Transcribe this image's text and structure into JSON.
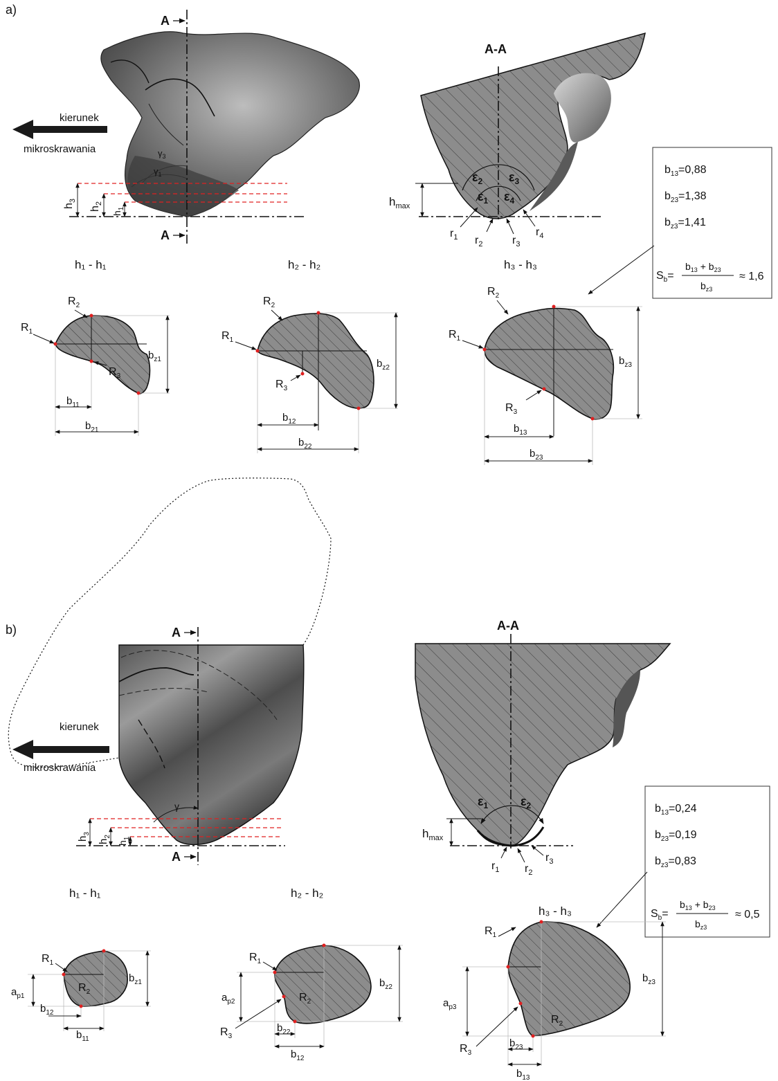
{
  "panel_a": {
    "label": "a)",
    "direction_line1": "kierunek",
    "direction_line2": "mikroskrawania",
    "section_label": "A-A",
    "marker_a_top": "A",
    "marker_a_bottom": "A",
    "h_labels": [
      "h",
      "h",
      "h"
    ],
    "h_subs": [
      "1",
      "2",
      "3"
    ],
    "gamma_labels": [
      "γ",
      "γ"
    ],
    "gamma_subs": [
      "3",
      "1"
    ],
    "hmax_main": "h",
    "hmax_sub": "max",
    "epsilon_subs": [
      "1",
      "2",
      "3",
      "4"
    ],
    "r_subs": [
      "1",
      "2",
      "3",
      "4"
    ],
    "box": {
      "b13": "=0,88",
      "b23": "=1,38",
      "bz3": "=1,41",
      "sb_result": "≈ 1,6"
    },
    "sections": [
      {
        "title": "h₁ - h₁"
      },
      {
        "title": "h₂ - h₂"
      },
      {
        "title": "h₃ - h₃"
      }
    ]
  },
  "panel_b": {
    "label": "b)",
    "direction_line1": "kierunek",
    "direction_line2": "mikroskrawania",
    "section_label": "A-A",
    "marker_a_top": "A",
    "marker_a_bottom": "A",
    "gamma": "γ",
    "box": {
      "b13": "=0,24",
      "b23": "=0,19",
      "bz3": "=0,83",
      "sb_result": "≈ 0,5"
    },
    "sections": [
      {
        "title": "h₁ - h₁"
      },
      {
        "title": "h₂ - h₂"
      },
      {
        "title": "h₃ - h₃"
      }
    ]
  },
  "colors": {
    "section_fill": "#8c8c8c",
    "hatch": "#3a3a3a",
    "markers": "#e02020",
    "dark_body": "#4a4a4a",
    "light_body": "#9a9a9a"
  }
}
